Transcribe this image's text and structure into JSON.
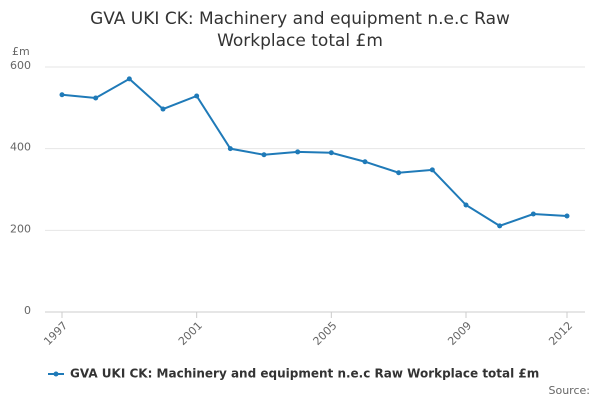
{
  "chart_data": {
    "type": "line",
    "title": "GVA UKI CK: Machinery and equipment n.e.c Raw Workplace total £m",
    "y_unit": "£m",
    "x": [
      1997,
      1998,
      1999,
      2000,
      2001,
      2002,
      2003,
      2004,
      2005,
      2006,
      2007,
      2008,
      2009,
      2010,
      2011,
      2012
    ],
    "series": [
      {
        "name": "GVA UKI CK: Machinery and equipment n.e.c Raw Workplace total £m",
        "color": "#1f7ab8",
        "values": [
          532,
          524,
          571,
          497,
          529,
          400,
          385,
          392,
          390,
          368,
          341,
          348,
          262,
          211,
          240,
          235
        ]
      }
    ],
    "xlim": [
      1997,
      2012
    ],
    "xticks": [
      1997,
      2001,
      2005,
      2009,
      2012
    ],
    "ylim": [
      0,
      600
    ],
    "yticks": [
      0,
      200,
      400,
      600
    ],
    "grid": true,
    "source": "Source:"
  }
}
